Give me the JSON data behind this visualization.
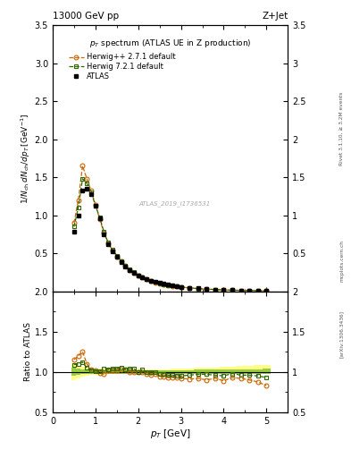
{
  "title_top_left": "13000 GeV pp",
  "title_top_right": "Z+Jet",
  "plot_title": "p_{T} spectrum (ATLAS UE in Z production)",
  "watermark": "ATLAS_2019_I1736531",
  "ylabel_main": "1/N_{ch} dN_{ch}/dp_{T} [GeV]",
  "ylabel_ratio": "Ratio to ATLAS",
  "xlabel": "p_{T} [GeV]",
  "right_label1": "Rivet 3.1.10, ≥ 3.2M events",
  "right_label2": "mcplots.cern.ch [arXiv:1306.3436]",
  "atlas_color": "#000000",
  "herwig_pp_color": "#cc6600",
  "herwig7_color": "#336600",
  "band_yellow": "#ffff88",
  "band_green": "#99cc44",
  "atlas_x": [
    0.5,
    0.6,
    0.7,
    0.8,
    0.9,
    1.0,
    1.1,
    1.2,
    1.3,
    1.4,
    1.5,
    1.6,
    1.7,
    1.8,
    1.9,
    2.0,
    2.1,
    2.2,
    2.3,
    2.4,
    2.5,
    2.6,
    2.7,
    2.8,
    2.9,
    3.0,
    3.2,
    3.4,
    3.6,
    3.8,
    4.0,
    4.2,
    4.4,
    4.6,
    4.8,
    5.0
  ],
  "atlas_y": [
    0.78,
    1.0,
    1.32,
    1.35,
    1.28,
    1.12,
    0.96,
    0.75,
    0.62,
    0.53,
    0.45,
    0.38,
    0.33,
    0.28,
    0.24,
    0.21,
    0.18,
    0.16,
    0.14,
    0.12,
    0.11,
    0.096,
    0.085,
    0.075,
    0.067,
    0.06,
    0.047,
    0.037,
    0.03,
    0.024,
    0.019,
    0.015,
    0.012,
    0.01,
    0.008,
    0.006
  ],
  "herwigpp_x": [
    0.5,
    0.6,
    0.7,
    0.8,
    0.9,
    1.0,
    1.1,
    1.2,
    1.3,
    1.4,
    1.5,
    1.6,
    1.7,
    1.8,
    1.9,
    2.0,
    2.1,
    2.2,
    2.3,
    2.4,
    2.5,
    2.6,
    2.7,
    2.8,
    2.9,
    3.0,
    3.2,
    3.4,
    3.6,
    3.8,
    4.0,
    4.2,
    4.4,
    4.6,
    4.8,
    5.0
  ],
  "herwigpp_y": [
    0.9,
    1.2,
    1.65,
    1.48,
    1.32,
    1.14,
    0.95,
    0.77,
    0.63,
    0.54,
    0.46,
    0.39,
    0.34,
    0.28,
    0.24,
    0.21,
    0.18,
    0.155,
    0.135,
    0.118,
    0.103,
    0.09,
    0.079,
    0.07,
    0.062,
    0.055,
    0.043,
    0.034,
    0.027,
    0.022,
    0.017,
    0.014,
    0.011,
    0.009,
    0.007,
    0.005
  ],
  "herwig7_x": [
    0.5,
    0.6,
    0.7,
    0.8,
    0.9,
    1.0,
    1.1,
    1.2,
    1.3,
    1.4,
    1.5,
    1.6,
    1.7,
    1.8,
    1.9,
    2.0,
    2.1,
    2.2,
    2.3,
    2.4,
    2.5,
    2.6,
    2.7,
    2.8,
    2.9,
    3.0,
    3.2,
    3.4,
    3.6,
    3.8,
    4.0,
    4.2,
    4.4,
    4.6,
    4.8,
    5.0
  ],
  "herwig7_y": [
    0.85,
    1.1,
    1.48,
    1.42,
    1.3,
    1.13,
    0.97,
    0.78,
    0.64,
    0.55,
    0.47,
    0.4,
    0.34,
    0.29,
    0.25,
    0.21,
    0.185,
    0.16,
    0.14,
    0.12,
    0.107,
    0.094,
    0.082,
    0.072,
    0.064,
    0.057,
    0.045,
    0.036,
    0.029,
    0.023,
    0.018,
    0.015,
    0.012,
    0.01,
    0.008,
    0.006
  ],
  "ratio_herwigpp_y": [
    1.15,
    1.2,
    1.25,
    1.1,
    1.03,
    1.02,
    0.99,
    0.97,
    1.02,
    1.02,
    1.02,
    1.03,
    1.03,
    1.0,
    1.0,
    1.0,
    1.0,
    0.97,
    0.96,
    0.98,
    0.94,
    0.94,
    0.93,
    0.93,
    0.93,
    0.92,
    0.91,
    0.92,
    0.9,
    0.92,
    0.89,
    0.93,
    0.92,
    0.9,
    0.875,
    0.83
  ],
  "ratio_herwig7_y": [
    1.09,
    1.1,
    1.12,
    1.05,
    1.02,
    1.01,
    1.01,
    1.04,
    1.03,
    1.04,
    1.04,
    1.05,
    1.03,
    1.04,
    1.04,
    1.0,
    1.03,
    1.0,
    1.0,
    1.0,
    0.97,
    0.98,
    0.96,
    0.96,
    0.955,
    0.95,
    0.96,
    0.97,
    0.97,
    0.96,
    0.95,
    0.98,
    0.96,
    0.96,
    0.95,
    0.93
  ],
  "band_x_edges": [
    0.45,
    0.55,
    0.65,
    0.75,
    0.85,
    0.95,
    1.05,
    1.15,
    1.25,
    1.35,
    1.45,
    1.55,
    1.65,
    1.75,
    1.85,
    1.95,
    2.05,
    2.15,
    2.25,
    2.35,
    2.45,
    2.55,
    2.65,
    2.75,
    2.85,
    2.95,
    3.1,
    3.3,
    3.5,
    3.7,
    3.9,
    4.1,
    4.3,
    4.5,
    4.7,
    4.9,
    5.1
  ],
  "band_yellow_lo": [
    0.9,
    0.92,
    0.94,
    0.95,
    0.96,
    0.96,
    0.96,
    0.96,
    0.97,
    0.97,
    0.97,
    0.97,
    0.97,
    0.97,
    0.97,
    0.97,
    0.97,
    0.97,
    0.97,
    0.97,
    0.97,
    0.97,
    0.97,
    0.97,
    0.97,
    0.97,
    0.97,
    0.97,
    0.97,
    0.97,
    0.97,
    0.97,
    0.97,
    0.97,
    0.97,
    0.97
  ],
  "band_yellow_hi": [
    1.1,
    1.08,
    1.06,
    1.05,
    1.04,
    1.04,
    1.04,
    1.04,
    1.03,
    1.03,
    1.03,
    1.03,
    1.03,
    1.03,
    1.03,
    1.03,
    1.03,
    1.03,
    1.03,
    1.03,
    1.035,
    1.035,
    1.035,
    1.04,
    1.04,
    1.04,
    1.045,
    1.05,
    1.05,
    1.055,
    1.06,
    1.065,
    1.07,
    1.08,
    1.085,
    1.09
  ],
  "band_green_lo": [
    0.95,
    0.96,
    0.97,
    0.97,
    0.97,
    0.97,
    0.97,
    0.97,
    0.98,
    0.98,
    0.98,
    0.98,
    0.98,
    0.98,
    0.98,
    0.98,
    0.98,
    0.98,
    0.98,
    0.98,
    0.98,
    0.98,
    0.98,
    0.98,
    0.98,
    0.98,
    0.98,
    0.98,
    0.98,
    0.98,
    0.98,
    0.98,
    0.98,
    0.98,
    0.98,
    0.98
  ],
  "band_green_hi": [
    1.05,
    1.04,
    1.03,
    1.03,
    1.02,
    1.02,
    1.02,
    1.02,
    1.02,
    1.02,
    1.02,
    1.02,
    1.02,
    1.02,
    1.02,
    1.02,
    1.02,
    1.02,
    1.02,
    1.02,
    1.02,
    1.02,
    1.02,
    1.02,
    1.02,
    1.02,
    1.02,
    1.025,
    1.025,
    1.025,
    1.03,
    1.03,
    1.03,
    1.035,
    1.035,
    1.04
  ],
  "xlim": [
    0,
    5.5
  ],
  "ylim_main": [
    0,
    3.5
  ],
  "ylim_ratio": [
    0.5,
    2.0
  ],
  "yticks_main": [
    0.5,
    1.0,
    1.5,
    2.0,
    2.5,
    3.0,
    3.5
  ],
  "yticks_ratio": [
    0.5,
    1.0,
    1.5,
    2.0
  ],
  "xticks": [
    0,
    1,
    2,
    3,
    4,
    5
  ]
}
